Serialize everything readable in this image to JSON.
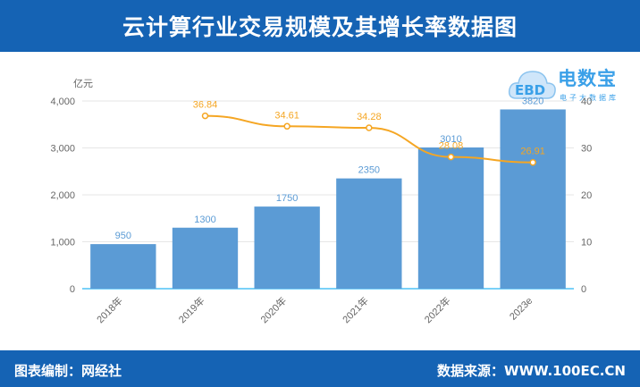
{
  "header": {
    "title": "云计算行业交易规模及其增长率数据图"
  },
  "footer": {
    "left": "图表编制：网经社",
    "right": "数据来源：WWW.100EC.CN"
  },
  "logo": {
    "main": "电数宝",
    "sub": "电子大数据库",
    "mark": "EBD"
  },
  "colors": {
    "header_bg": "#1563b4",
    "bar": "#5b9bd5",
    "line": "#f5a623",
    "bar_label": "#5b9bd5",
    "line_label": "#f5a623"
  },
  "chart_data": {
    "type": "bar",
    "categories": [
      "2018年",
      "2019年",
      "2020年",
      "2021年",
      "2022年",
      "2023e"
    ],
    "ylabel": "亿元",
    "ylim": [
      0,
      4000
    ],
    "yticks": [
      "0",
      "1,000",
      "2,000",
      "3,000",
      "4,000"
    ],
    "y2lim": [
      0,
      40
    ],
    "y2ticks": [
      "0",
      "10",
      "20",
      "30",
      "40"
    ],
    "grid": true,
    "series": [
      {
        "type": "bar",
        "values": [
          950,
          1300,
          1750,
          2350,
          3010,
          3820
        ],
        "labels": [
          "950",
          "1300",
          "1750",
          "2350",
          "3010",
          "3820"
        ]
      },
      {
        "type": "line",
        "axis": "right",
        "values": [
          null,
          36.84,
          34.61,
          34.28,
          28.08,
          26.91
        ],
        "labels": [
          "",
          "36.84",
          "34.61",
          "34.28",
          "28.08",
          "26.91"
        ]
      }
    ]
  }
}
